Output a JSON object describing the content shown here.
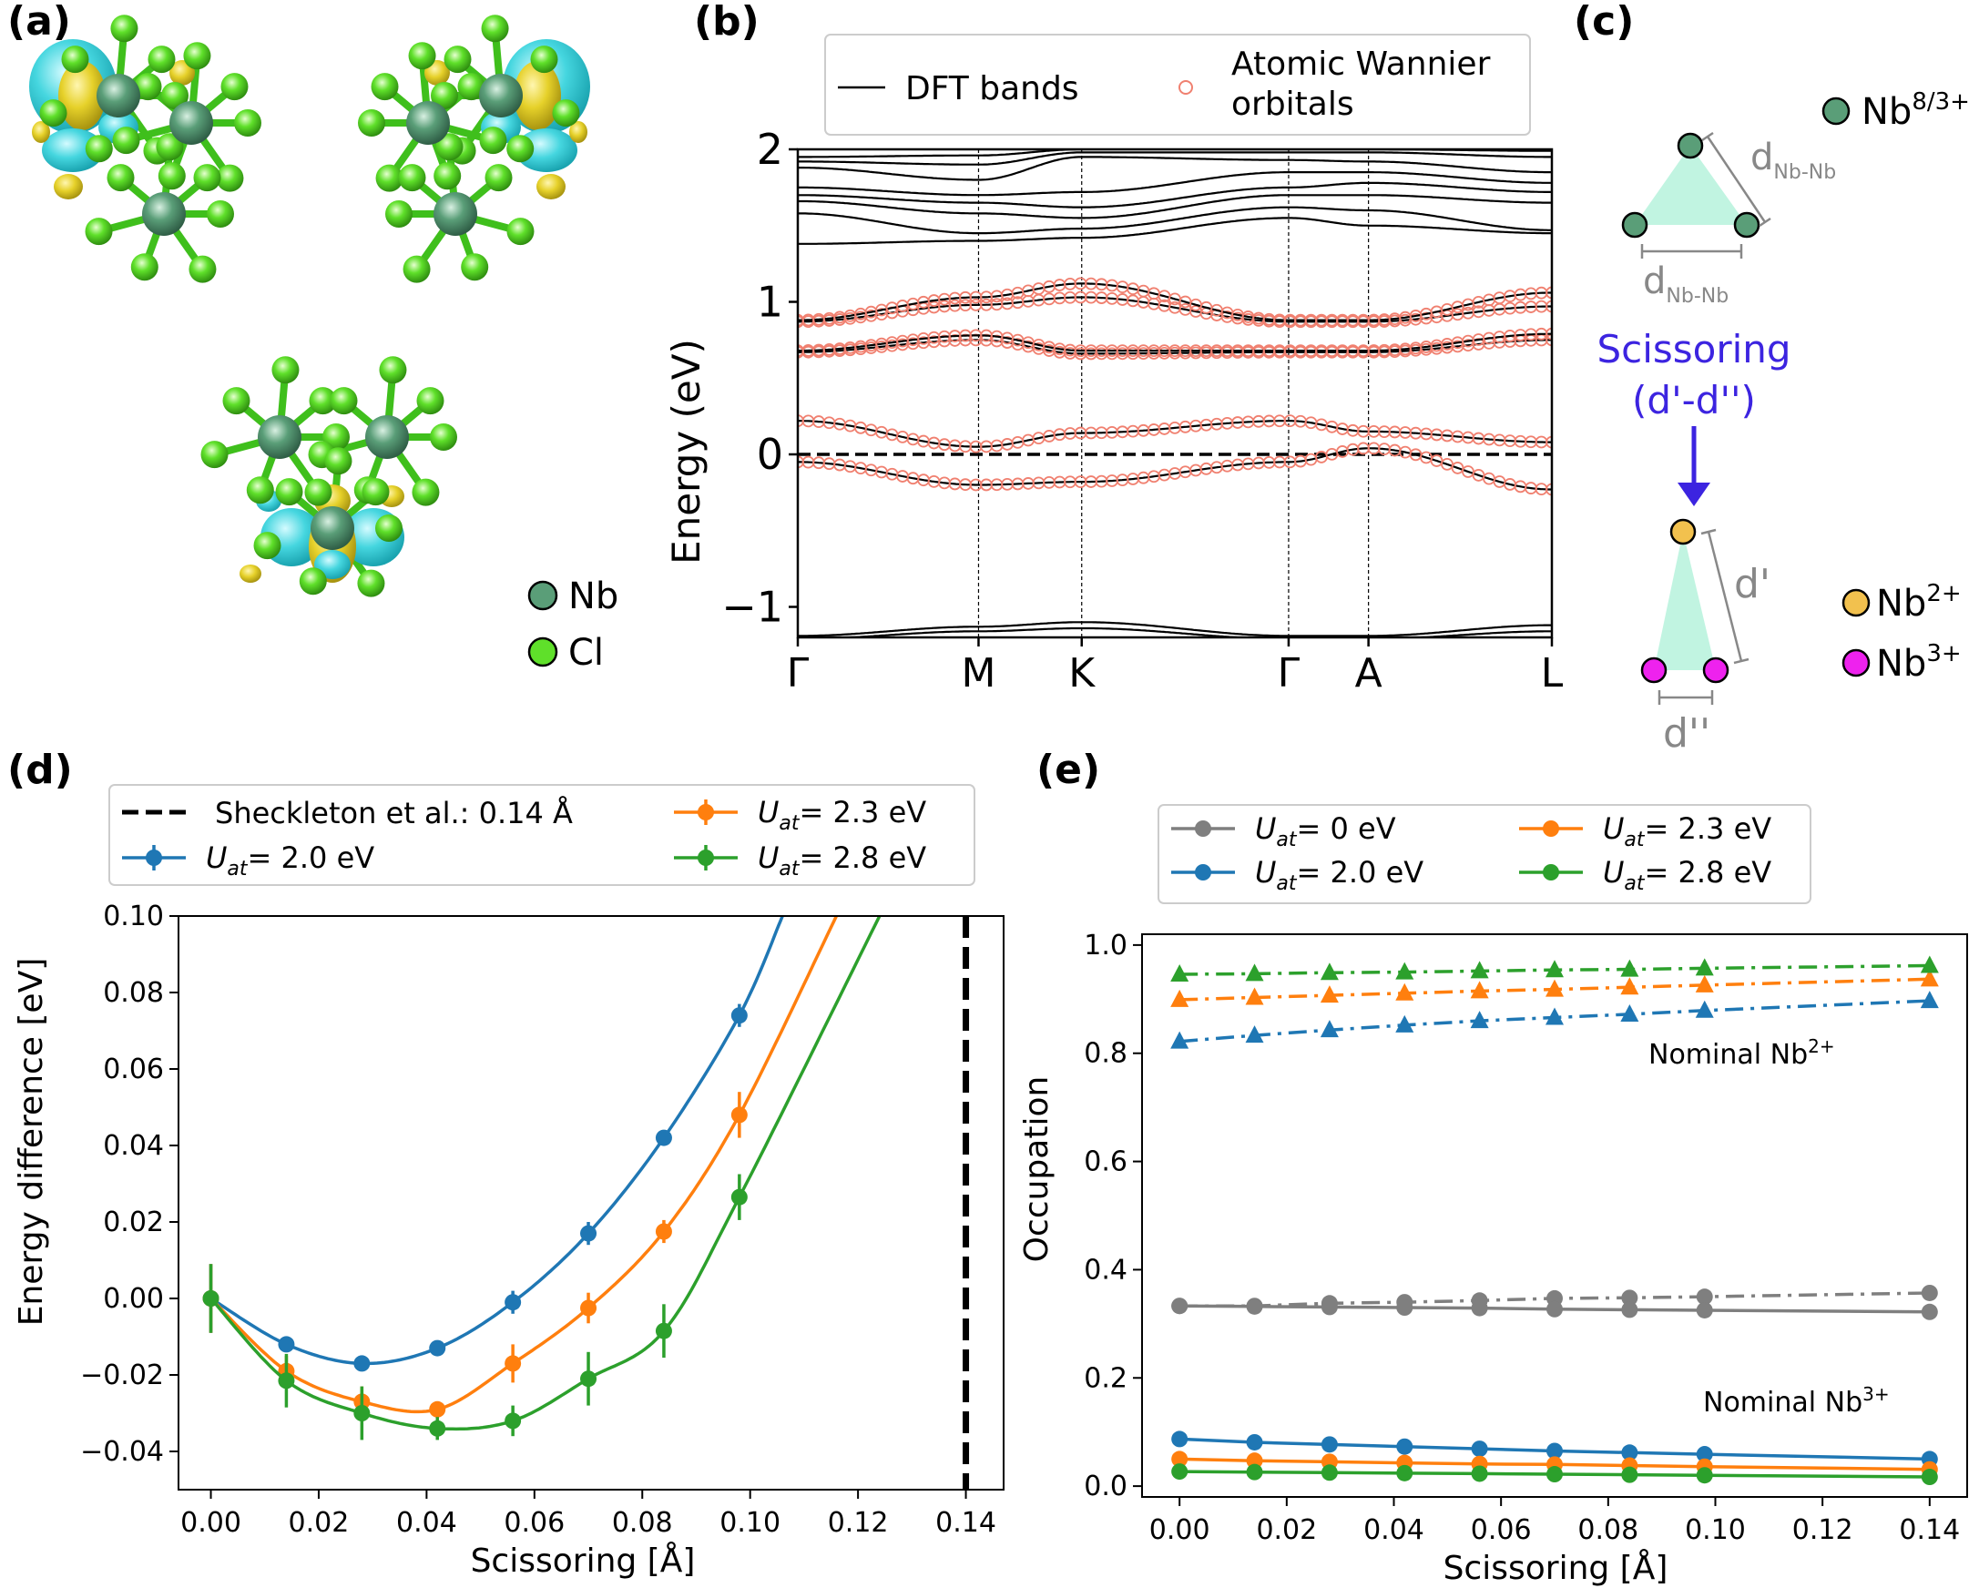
{
  "panel_labels": {
    "a": "(a)",
    "b": "(b)",
    "c": "(c)",
    "d": "(d)",
    "e": "(e)"
  },
  "colors": {
    "blue": "#1f77b4",
    "orange": "#ff7f0e",
    "green": "#2ca02c",
    "gray": "#7f7f7f",
    "wannier": "#f08070",
    "nb": "#5a9e78",
    "cl": "#5fe02a",
    "lobe_cyan": "#45d6df",
    "lobe_yellow": "#e6d12a",
    "nb2": "#f2c14e",
    "nb3": "#ee22ee",
    "scissor": "#3c24e0",
    "triangle": "#b6f2dc"
  },
  "panel_a": {
    "legend": [
      {
        "label": "Nb",
        "color": "#5a9e78"
      },
      {
        "label": "Cl",
        "color": "#5fe02a"
      }
    ]
  },
  "panel_b": {
    "legend": {
      "dft": "DFT bands",
      "wannier_line1": "Atomic Wannier",
      "wannier_line2": "orbitals"
    },
    "ylabel": "Energy (eV)",
    "yticks": [
      {
        "v": 2,
        "label": "2"
      },
      {
        "v": 1,
        "label": "1"
      },
      {
        "v": 0,
        "label": "0"
      },
      {
        "v": -1,
        "label": "−1"
      }
    ],
    "ylim": [
      -1.2,
      2.0
    ],
    "kpoints": [
      {
        "label": "Γ",
        "pos": 0
      },
      {
        "label": "M",
        "pos": 0.2397
      },
      {
        "label": "K",
        "pos": 0.3765
      },
      {
        "label": "Γ",
        "pos": 0.6509
      },
      {
        "label": "A",
        "pos": 0.7568
      },
      {
        "label": "L",
        "pos": 1.0
      }
    ]
  },
  "chart_data": [
    {
      "type": "line",
      "panel": "b",
      "title": "",
      "xlabel": "",
      "ylabel": "Energy (eV)",
      "ylim": [
        -1.2,
        2.0
      ],
      "x": [
        0,
        0.2397,
        0.3765,
        0.6509,
        0.7568,
        1.0
      ],
      "series": [
        {
          "name": "Wannier band 1",
          "values": [
            -0.05,
            -0.2,
            -0.18,
            -0.05,
            0.04,
            -0.23
          ]
        },
        {
          "name": "Wannier band 2",
          "values": [
            0.22,
            0.05,
            0.14,
            0.22,
            0.15,
            0.08
          ]
        },
        {
          "name": "Wannier band 3",
          "values": [
            0.67,
            0.75,
            0.66,
            0.67,
            0.67,
            0.75
          ]
        },
        {
          "name": "Wannier band 4",
          "values": [
            0.68,
            0.78,
            0.68,
            0.68,
            0.68,
            0.79
          ]
        },
        {
          "name": "Wannier band 5",
          "values": [
            0.87,
            0.98,
            1.03,
            0.87,
            0.87,
            0.97
          ]
        },
        {
          "name": "Wannier band 6",
          "values": [
            0.88,
            1.03,
            1.12,
            0.88,
            0.88,
            1.06
          ]
        },
        {
          "name": "DFT upper 1",
          "values": [
            1.38,
            1.4,
            1.42,
            1.55,
            1.5,
            1.45
          ]
        },
        {
          "name": "DFT upper 2",
          "values": [
            1.58,
            1.45,
            1.48,
            1.62,
            1.6,
            1.47
          ]
        },
        {
          "name": "DFT upper 3",
          "values": [
            1.66,
            1.58,
            1.55,
            1.7,
            1.7,
            1.65
          ]
        },
        {
          "name": "DFT upper 4",
          "values": [
            1.7,
            1.65,
            1.62,
            1.75,
            1.78,
            1.72
          ]
        },
        {
          "name": "DFT upper 5",
          "values": [
            1.75,
            1.7,
            1.72,
            1.85,
            1.85,
            1.78
          ]
        },
        {
          "name": "DFT upper 6",
          "values": [
            1.88,
            1.8,
            1.95,
            1.93,
            1.92,
            1.85
          ]
        },
        {
          "name": "DFT upper 7",
          "values": [
            1.92,
            1.9,
            1.98,
            1.98,
            1.98,
            1.95
          ]
        },
        {
          "name": "DFT upper 8",
          "values": [
            1.95,
            1.96,
            2.0,
            2.0,
            2.0,
            1.99
          ]
        },
        {
          "name": "DFT lower 1",
          "values": [
            -1.19,
            -1.13,
            -1.1,
            -1.19,
            -1.19,
            -1.12
          ]
        },
        {
          "name": "DFT lower 2",
          "values": [
            -1.21,
            -1.16,
            -1.14,
            -1.21,
            -1.21,
            -1.16
          ]
        }
      ]
    },
    {
      "type": "line",
      "panel": "d",
      "title": "",
      "xlabel": "Scissoring [Å]",
      "ylabel": "Energy difference [eV]",
      "xlim": [
        -0.006,
        0.147
      ],
      "ylim": [
        -0.05,
        0.1
      ],
      "xticks": [
        0,
        0.02,
        0.04,
        0.06,
        0.08,
        0.1,
        0.12,
        0.14
      ],
      "yticks": [
        -0.04,
        -0.02,
        0,
        0.02,
        0.04,
        0.06,
        0.08,
        0.1
      ],
      "x": [
        0,
        0.014,
        0.028,
        0.042,
        0.056,
        0.07,
        0.084,
        0.098
      ],
      "vline": {
        "x": 0.14,
        "label": "Sheckleton et al.: 0.14 Å"
      },
      "series": [
        {
          "name": "U_at = 2.0 eV",
          "values": [
            0.0,
            -0.012,
            -0.017,
            -0.013,
            -0.001,
            0.017,
            0.042,
            0.074
          ],
          "err": [
            0.009,
            0.002,
            0.002,
            0.002,
            0.003,
            0.003,
            0.002,
            0.003
          ],
          "extend": [
            0.106,
            0.1
          ],
          "color": "#1f77b4"
        },
        {
          "name": "U_at = 2.3 eV",
          "values": [
            0.0,
            -0.019,
            -0.027,
            -0.029,
            -0.017,
            -0.0025,
            0.0175,
            0.048
          ],
          "err": [
            0.009,
            0.004,
            0.004,
            0.002,
            0.005,
            0.004,
            0.003,
            0.006
          ],
          "extend": [
            0.116,
            0.1
          ],
          "color": "#ff7f0e"
        },
        {
          "name": "U_at = 2.8 eV",
          "values": [
            0.0,
            -0.0215,
            -0.03,
            -0.034,
            -0.032,
            -0.021,
            -0.0085,
            0.0265
          ],
          "err": [
            0.009,
            0.007,
            0.007,
            0.003,
            0.004,
            0.007,
            0.007,
            0.006
          ],
          "extend": [
            0.124,
            0.1
          ],
          "color": "#2ca02c"
        }
      ]
    },
    {
      "type": "line",
      "panel": "e",
      "title": "",
      "xlabel": "Scissoring [Å]",
      "ylabel": "Occupation",
      "xlim": [
        -0.007,
        0.147
      ],
      "ylim": [
        -0.02,
        1.02
      ],
      "xticks": [
        0,
        0.02,
        0.04,
        0.06,
        0.08,
        0.1,
        0.12,
        0.14
      ],
      "yticks": [
        0,
        0.2,
        0.4,
        0.6,
        0.8,
        1.0
      ],
      "x": [
        0,
        0.014,
        0.028,
        0.042,
        0.056,
        0.07,
        0.084,
        0.098,
        0.14
      ],
      "series": [
        {
          "name": "U_at = 0 eV (Nb2+)",
          "values": [
            0.333,
            0.333,
            0.338,
            0.34,
            0.343,
            0.347,
            0.348,
            0.35,
            0.357
          ],
          "color": "#7f7f7f",
          "style": "dashdot",
          "marker": "circle"
        },
        {
          "name": "U_at = 0 eV (Nb3+)",
          "values": [
            0.333,
            0.332,
            0.331,
            0.33,
            0.329,
            0.327,
            0.326,
            0.325,
            0.322
          ],
          "color": "#7f7f7f",
          "style": "solid",
          "marker": "circle"
        },
        {
          "name": "U_at = 2.0 eV (Nb2+)",
          "values": [
            0.822,
            0.833,
            0.843,
            0.852,
            0.86,
            0.866,
            0.872,
            0.879,
            0.897
          ],
          "color": "#1f77b4",
          "style": "dashdot",
          "marker": "triangle"
        },
        {
          "name": "U_at = 2.0 eV (Nb3+)",
          "values": [
            0.087,
            0.081,
            0.077,
            0.073,
            0.069,
            0.065,
            0.062,
            0.059,
            0.05
          ],
          "color": "#1f77b4",
          "style": "solid",
          "marker": "circle"
        },
        {
          "name": "U_at = 2.3 eV (Nb2+)",
          "values": [
            0.899,
            0.903,
            0.907,
            0.911,
            0.915,
            0.918,
            0.922,
            0.926,
            0.937
          ],
          "color": "#ff7f0e",
          "style": "dashdot",
          "marker": "triangle"
        },
        {
          "name": "U_at = 2.3 eV (Nb3+)",
          "values": [
            0.05,
            0.047,
            0.045,
            0.043,
            0.041,
            0.04,
            0.038,
            0.036,
            0.031
          ],
          "color": "#ff7f0e",
          "style": "solid",
          "marker": "circle"
        },
        {
          "name": "U_at = 2.8 eV (Nb2+)",
          "values": [
            0.946,
            0.947,
            0.949,
            0.95,
            0.952,
            0.954,
            0.955,
            0.957,
            0.962
          ],
          "color": "#2ca02c",
          "style": "dashdot",
          "marker": "triangle"
        },
        {
          "name": "U_at = 2.8 eV (Nb3+)",
          "values": [
            0.027,
            0.026,
            0.025,
            0.024,
            0.023,
            0.022,
            0.021,
            0.02,
            0.017
          ],
          "color": "#2ca02c",
          "style": "solid",
          "marker": "circle"
        }
      ],
      "annotations": [
        {
          "text": "Nominal Nb",
          "sup": "2+"
        },
        {
          "text": "Nominal Nb",
          "sup": "3+"
        }
      ]
    }
  ],
  "panel_d_legend": [
    {
      "sym": "U",
      "sub": "at",
      "rest": "= 2.0 eV",
      "color": "#1f77b4"
    },
    {
      "sym": "U",
      "sub": "at",
      "rest": "= 2.3 eV",
      "color": "#ff7f0e"
    },
    {
      "sym": "U",
      "sub": "at",
      "rest": "= 2.8 eV",
      "color": "#2ca02c"
    }
  ],
  "panel_e_legend": [
    {
      "sym": "U",
      "sub": "at",
      "rest": "= 0 eV",
      "color": "#7f7f7f"
    },
    {
      "sym": "U",
      "sub": "at",
      "rest": "= 2.3 eV",
      "color": "#ff7f0e"
    },
    {
      "sym": "U",
      "sub": "at",
      "rest": "= 2.0 eV",
      "color": "#1f77b4"
    },
    {
      "sym": "U",
      "sub": "at",
      "rest": "= 2.8 eV",
      "color": "#2ca02c"
    }
  ],
  "panel_c": {
    "nb_top": {
      "base": "Nb",
      "sup": "8/3+"
    },
    "nb2": {
      "base": "Nb",
      "sup": "2+"
    },
    "nb3": {
      "base": "Nb",
      "sup": "3+"
    },
    "d_label": "d",
    "d_sub": "Nb-Nb",
    "scissor_line1": "Scissoring",
    "scissor_line2": "(d'-d'')",
    "d_prime": "d'",
    "d_dprime": "d''"
  }
}
